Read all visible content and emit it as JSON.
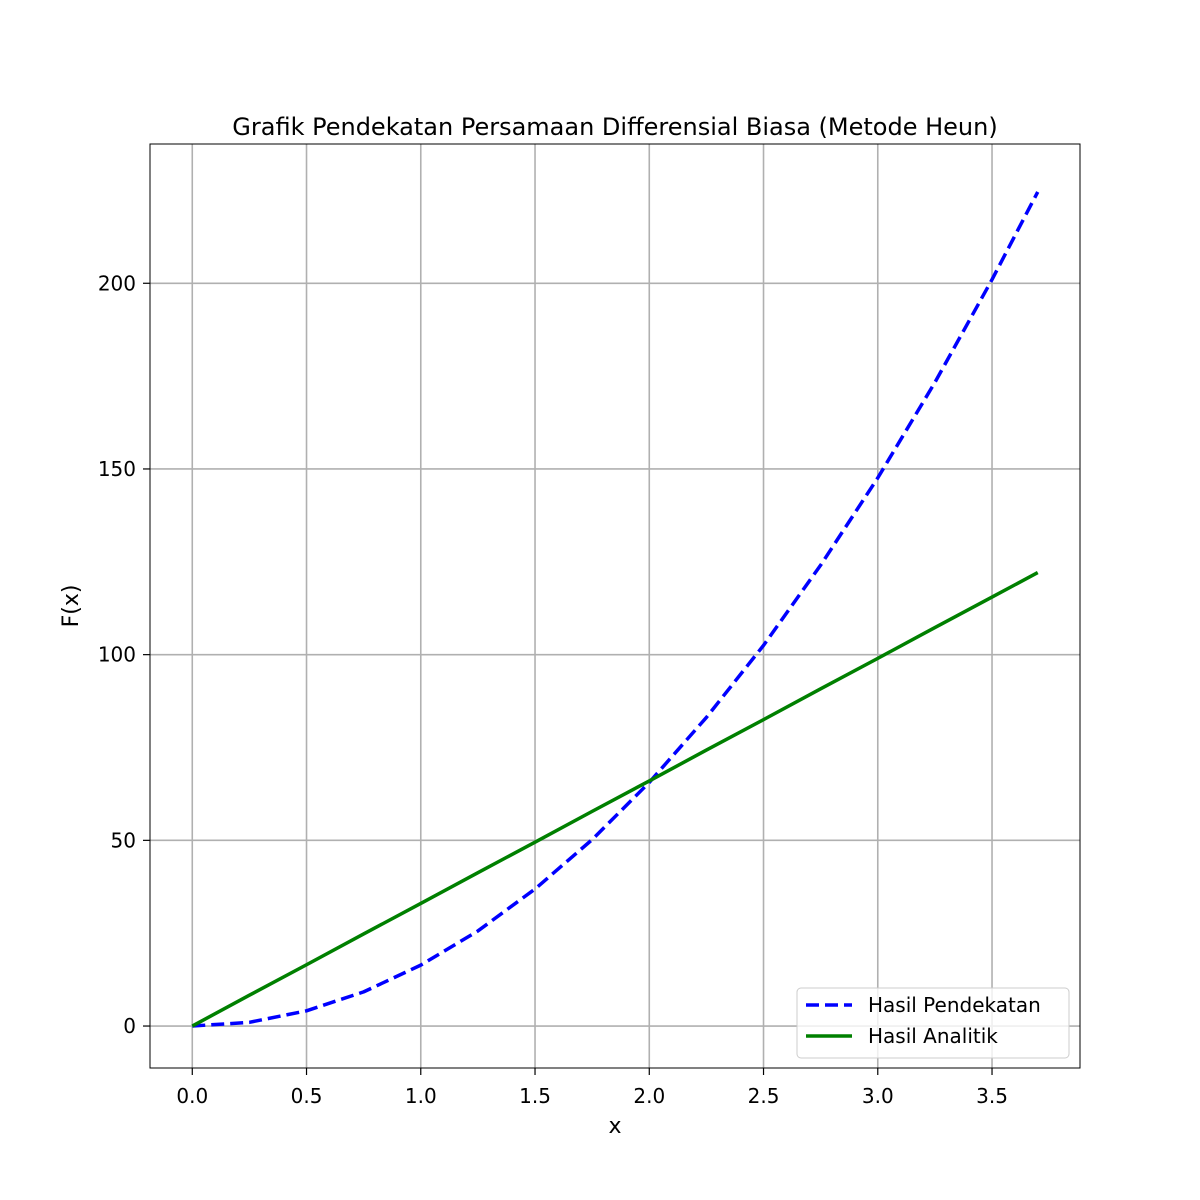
{
  "chart_data": {
    "type": "line",
    "title": "Grafik Pendekatan Persamaan Differensial Biasa (Metode Heun)",
    "xlabel": "x",
    "ylabel": "F(x)",
    "xlim": [
      -0.185,
      3.885
    ],
    "ylim": [
      -11.3,
      237.5
    ],
    "xticks": [
      0.0,
      0.5,
      1.0,
      1.5,
      2.0,
      2.5,
      3.0,
      3.5
    ],
    "xtick_labels": [
      "0.0",
      "0.5",
      "1.0",
      "1.5",
      "2.0",
      "2.5",
      "3.0",
      "3.5"
    ],
    "yticks": [
      0,
      50,
      100,
      150,
      200
    ],
    "ytick_labels": [
      "0",
      "50",
      "100",
      "150",
      "200"
    ],
    "grid": true,
    "legend_position": "lower right",
    "x": [
      0.0,
      0.25,
      0.5,
      0.75,
      1.0,
      1.25,
      1.5,
      1.75,
      2.0,
      2.25,
      2.5,
      2.75,
      3.0,
      3.25,
      3.5,
      3.7
    ],
    "series": [
      {
        "name": "Hasil Pendekatan",
        "color": "#0000ff",
        "style": "dashed",
        "values": [
          0.0,
          1.0,
          4.1,
          9.2,
          16.4,
          25.6,
          36.9,
          50.2,
          65.6,
          83.1,
          102.5,
          124.1,
          147.6,
          173.3,
          201.0,
          224.6
        ]
      },
      {
        "name": "Hasil Analitik",
        "color": "#008000",
        "style": "solid",
        "values": [
          0.0,
          8.3,
          16.5,
          24.8,
          33.0,
          41.3,
          49.5,
          57.8,
          66.0,
          74.3,
          82.5,
          90.8,
          99.0,
          107.3,
          115.5,
          122.1
        ]
      }
    ]
  }
}
